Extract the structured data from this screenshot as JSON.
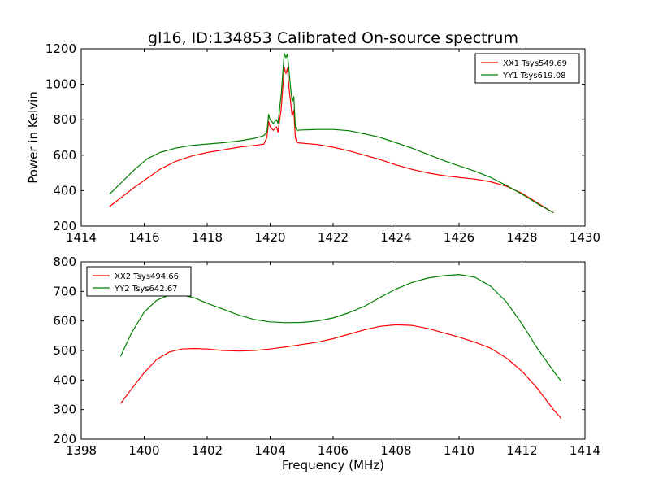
{
  "title": "gl16, ID:134853 Calibrated On-source spectrum",
  "ylabel": "Power in Kelvin",
  "xlabel": "Frequency (MHz)",
  "chart_data": [
    {
      "type": "line",
      "xlim": [
        1414,
        1430
      ],
      "ylim": [
        200,
        1200
      ],
      "xticks": [
        1414,
        1416,
        1418,
        1420,
        1422,
        1424,
        1426,
        1428,
        1430
      ],
      "yticks": [
        200,
        400,
        600,
        800,
        1000,
        1200
      ],
      "legend_position": "top-right",
      "series": [
        {
          "name": "XX1 Tsys549.69",
          "color": "#ff0000",
          "x": [
            1414.9,
            1415.3,
            1415.7,
            1416.1,
            1416.5,
            1417.0,
            1417.5,
            1418.0,
            1418.5,
            1419.0,
            1419.5,
            1419.8,
            1419.9,
            1419.95,
            1420.0,
            1420.1,
            1420.2,
            1420.25,
            1420.35,
            1420.45,
            1420.5,
            1420.55,
            1420.6,
            1420.65,
            1420.7,
            1420.75,
            1420.8,
            1420.85,
            1421.0,
            1421.5,
            1422.0,
            1422.5,
            1423.0,
            1423.5,
            1424.0,
            1424.5,
            1425.0,
            1425.5,
            1426.0,
            1426.5,
            1427.0,
            1427.5,
            1428.0,
            1428.5,
            1429.0
          ],
          "y": [
            310,
            365,
            420,
            470,
            520,
            565,
            595,
            615,
            630,
            645,
            655,
            662,
            700,
            790,
            760,
            740,
            760,
            730,
            860,
            1095,
            1060,
            1090,
            980,
            900,
            820,
            855,
            700,
            670,
            668,
            660,
            645,
            625,
            600,
            575,
            545,
            520,
            500,
            485,
            475,
            465,
            450,
            425,
            385,
            330,
            275
          ]
        },
        {
          "name": "YY1 Tsys619.08",
          "color": "#008000",
          "x": [
            1414.9,
            1415.3,
            1415.7,
            1416.1,
            1416.5,
            1417.0,
            1417.5,
            1418.0,
            1418.5,
            1419.0,
            1419.5,
            1419.8,
            1419.9,
            1419.95,
            1420.0,
            1420.1,
            1420.2,
            1420.25,
            1420.35,
            1420.45,
            1420.5,
            1420.55,
            1420.6,
            1420.65,
            1420.7,
            1420.75,
            1420.8,
            1420.85,
            1421.0,
            1421.5,
            1422.0,
            1422.5,
            1423.0,
            1423.5,
            1424.0,
            1424.5,
            1425.0,
            1425.5,
            1426.0,
            1426.5,
            1427.0,
            1427.5,
            1428.0,
            1428.5,
            1429.0
          ],
          "y": [
            380,
            450,
            520,
            580,
            615,
            640,
            655,
            663,
            670,
            680,
            695,
            710,
            730,
            830,
            800,
            780,
            800,
            780,
            940,
            1175,
            1150,
            1170,
            1080,
            980,
            900,
            930,
            760,
            740,
            742,
            745,
            745,
            738,
            720,
            700,
            670,
            640,
            605,
            570,
            540,
            510,
            475,
            430,
            380,
            325,
            275
          ]
        }
      ]
    },
    {
      "type": "line",
      "xlim": [
        1398,
        1414
      ],
      "ylim": [
        200,
        800
      ],
      "xticks": [
        1398,
        1400,
        1402,
        1404,
        1406,
        1408,
        1410,
        1412,
        1414
      ],
      "yticks": [
        200,
        300,
        400,
        500,
        600,
        700,
        800
      ],
      "legend_position": "top-left",
      "series": [
        {
          "name": "XX2 Tsys494.66",
          "color": "#ff0000",
          "x": [
            1399.25,
            1399.6,
            1400.0,
            1400.4,
            1400.8,
            1401.2,
            1401.6,
            1402.0,
            1402.5,
            1403.0,
            1403.5,
            1404.0,
            1404.5,
            1405.0,
            1405.5,
            1406.0,
            1406.5,
            1407.0,
            1407.5,
            1408.0,
            1408.5,
            1409.0,
            1409.5,
            1410.0,
            1410.5,
            1411.0,
            1411.5,
            1412.0,
            1412.5,
            1413.0,
            1413.25
          ],
          "y": [
            320,
            370,
            425,
            470,
            495,
            505,
            507,
            505,
            500,
            498,
            500,
            505,
            512,
            520,
            528,
            540,
            555,
            570,
            582,
            587,
            585,
            575,
            560,
            545,
            528,
            508,
            475,
            430,
            370,
            300,
            270
          ]
        },
        {
          "name": "YY2 Tsys642.67",
          "color": "#008000",
          "x": [
            1399.25,
            1399.6,
            1400.0,
            1400.4,
            1400.8,
            1401.2,
            1401.6,
            1402.0,
            1402.5,
            1403.0,
            1403.5,
            1404.0,
            1404.5,
            1405.0,
            1405.5,
            1406.0,
            1406.5,
            1407.0,
            1407.5,
            1408.0,
            1408.5,
            1409.0,
            1409.5,
            1410.0,
            1410.5,
            1411.0,
            1411.5,
            1412.0,
            1412.5,
            1413.0,
            1413.25
          ],
          "y": [
            480,
            560,
            630,
            670,
            688,
            688,
            678,
            660,
            640,
            620,
            605,
            597,
            594,
            595,
            600,
            610,
            628,
            650,
            680,
            708,
            730,
            745,
            753,
            757,
            748,
            718,
            665,
            590,
            505,
            430,
            395
          ]
        }
      ]
    }
  ]
}
